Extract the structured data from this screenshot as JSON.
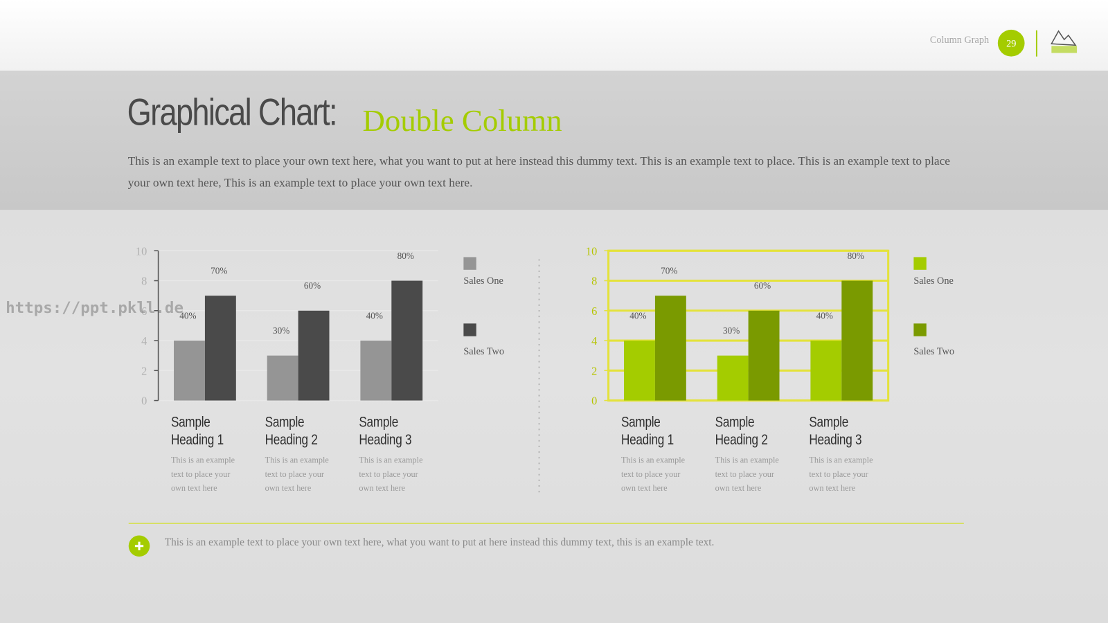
{
  "header": {
    "section": "Column Graph",
    "page": "29"
  },
  "title": {
    "main": "Graphical Chart:",
    "accent": "Double Column"
  },
  "description": "This is an example text to place your own text here, what you want to put at here instead this dummy text. This is an example text to place. This is an example text to place your own text here, This is an example text to place your own text here.",
  "watermark": "https://ppt.pkll.de",
  "chart_data": [
    {
      "type": "bar",
      "categories": [
        "Sample Heading 1",
        "Sample Heading 2",
        "Sample Heading 3"
      ],
      "descriptions": [
        "This is an example text to place your own text here",
        "This is an example text to place your own text here",
        "This is an example text to place your own text here"
      ],
      "series": [
        {
          "name": "Sales One",
          "color": "#959595",
          "values": [
            4,
            3,
            4
          ],
          "value_labels": [
            "40%",
            "30%",
            "40%"
          ]
        },
        {
          "name": "Sales Two",
          "color": "#4a4a4a",
          "values": [
            7,
            6,
            8
          ],
          "value_labels": [
            "70%",
            "60%",
            "80%"
          ]
        }
      ],
      "ylim": [
        0,
        10
      ],
      "yticks": [
        0,
        2,
        4,
        6,
        8,
        10
      ],
      "grid": true,
      "grid_color": "#e8e8e8",
      "axis_color": "#555555",
      "tick_color": "#b0b0b0",
      "frame": false
    },
    {
      "type": "bar",
      "categories": [
        "Sample Heading 1",
        "Sample Heading 2",
        "Sample Heading 3"
      ],
      "descriptions": [
        "This is an example text to place your own text here",
        "This is an example text to place your own text here",
        "This is an example text to place your own text here"
      ],
      "series": [
        {
          "name": "Sales One",
          "color": "#a4cc00",
          "values": [
            4,
            3,
            4
          ],
          "value_labels": [
            "40%",
            "30%",
            "40%"
          ]
        },
        {
          "name": "Sales Two",
          "color": "#7a9a00",
          "values": [
            7,
            6,
            8
          ],
          "value_labels": [
            "70%",
            "60%",
            "80%"
          ]
        }
      ],
      "ylim": [
        0,
        10
      ],
      "yticks": [
        0,
        2,
        4,
        6,
        8,
        10
      ],
      "grid": true,
      "grid_color": "#e4e23c",
      "axis_color": "#e4e23c",
      "tick_color": "#b5c400",
      "frame": true
    }
  ],
  "footer": "This is an example text to place your own text here, what you want to put at here instead this dummy text, this is an example text."
}
